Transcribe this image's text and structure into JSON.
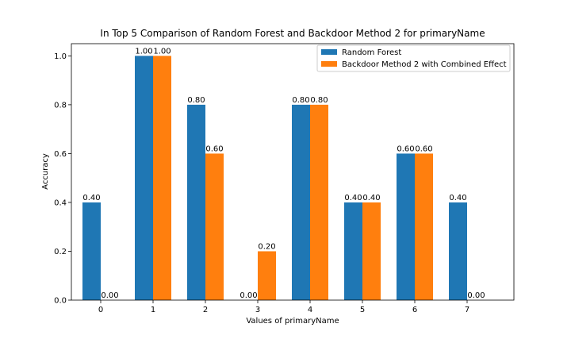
{
  "chart_data": {
    "type": "bar",
    "title": "In Top 5 Comparison of Random Forest and Backdoor Method 2 for primaryName",
    "xlabel": "Values of primaryName",
    "ylabel": "Accuracy",
    "categories": [
      "0",
      "1",
      "2",
      "3",
      "4",
      "5",
      "6",
      "7"
    ],
    "ylim": [
      0,
      1.05
    ],
    "yticks": [
      "0.0",
      "0.2",
      "0.4",
      "0.6",
      "0.8",
      "1.0"
    ],
    "grid": false,
    "legend_position": "top-right",
    "series": [
      {
        "name": "Random Forest",
        "color": "#1f77b4",
        "values": [
          0.4,
          1.0,
          0.8,
          0.0,
          0.8,
          0.4,
          0.6,
          0.4
        ],
        "labels": [
          "0.40",
          "1.00",
          "0.80",
          "0.00",
          "0.80",
          "0.40",
          "0.60",
          "0.40"
        ]
      },
      {
        "name": "Backdoor Method 2 with Combined Effect",
        "color": "#ff7f0e",
        "values": [
          0.0,
          1.0,
          0.6,
          0.2,
          0.8,
          0.4,
          0.6,
          0.0
        ],
        "labels": [
          "0.00",
          "1.00",
          "0.60",
          "0.20",
          "0.80",
          "0.40",
          "0.60",
          "0.00"
        ]
      }
    ]
  }
}
